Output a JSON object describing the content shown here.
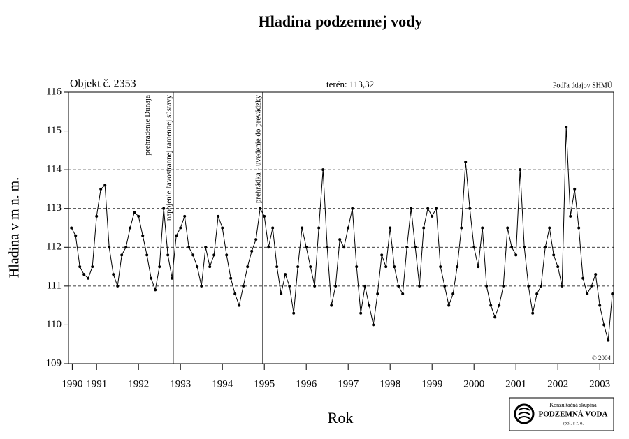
{
  "chart_data": {
    "type": "line",
    "title": "Hladina podzemnej vody",
    "x_label": "Rok",
    "y_label": "Hladina v m n. m.",
    "object": "Objekt č. 2353",
    "terrain": "terén: 113,32",
    "source": "Podľa údajov SHMÚ",
    "copyright": "© 2004",
    "logo": {
      "line1": "Konzultačná skupina",
      "line2": "PODZEMNÁ VODA",
      "line3": "spol. s r. o."
    },
    "events": [
      {
        "x": 1992.82,
        "label": "prehradenie Dunaja"
      },
      {
        "x": 1993.33,
        "label": "napojenie ľavostrannej ramennej sústavy"
      },
      {
        "x": 1995.46,
        "label": "prehrádka - uvedenie do prevádzky"
      }
    ],
    "xlim": [
      1990.83,
      2003.83
    ],
    "ylim": [
      109,
      116
    ],
    "yticks": [
      109,
      110,
      111,
      112,
      113,
      114,
      115,
      116
    ],
    "xticks": [
      {
        "value": 1990.92,
        "label": "1990"
      },
      {
        "value": 1991.5,
        "label": "1991"
      },
      {
        "value": 1992.5,
        "label": "1992"
      },
      {
        "value": 1993.5,
        "label": "1993"
      },
      {
        "value": 1994.5,
        "label": "1994"
      },
      {
        "value": 1995.5,
        "label": "1995"
      },
      {
        "value": 1996.5,
        "label": "1996"
      },
      {
        "value": 1997.5,
        "label": "1997"
      },
      {
        "value": 1998.5,
        "label": "1998"
      },
      {
        "value": 1999.5,
        "label": "1999"
      },
      {
        "value": 2000.5,
        "label": "2000"
      },
      {
        "value": 2001.5,
        "label": "2001"
      },
      {
        "value": 2002.5,
        "label": "2002"
      },
      {
        "value": 2003.5,
        "label": "2003"
      }
    ],
    "grid": true,
    "x": [
      1990.9,
      1991.0,
      1991.1,
      1991.2,
      1991.3,
      1991.4,
      1991.5,
      1991.6,
      1991.7,
      1991.8,
      1991.9,
      1992.0,
      1992.1,
      1992.2,
      1992.3,
      1992.4,
      1992.5,
      1992.6,
      1992.7,
      1992.8,
      1992.9,
      1993.0,
      1993.1,
      1993.2,
      1993.3,
      1993.4,
      1993.5,
      1993.6,
      1993.7,
      1993.8,
      1993.9,
      1994.0,
      1994.1,
      1994.2,
      1994.3,
      1994.4,
      1994.5,
      1994.6,
      1994.7,
      1994.8,
      1994.9,
      1995.0,
      1995.1,
      1995.2,
      1995.3,
      1995.4,
      1995.5,
      1995.6,
      1995.7,
      1995.8,
      1995.9,
      1996.0,
      1996.1,
      1996.2,
      1996.3,
      1996.4,
      1996.5,
      1996.6,
      1996.7,
      1996.8,
      1996.9,
      1997.0,
      1997.1,
      1997.2,
      1997.3,
      1997.4,
      1997.5,
      1997.6,
      1997.7,
      1997.8,
      1997.9,
      1998.0,
      1998.1,
      1998.2,
      1998.3,
      1998.4,
      1998.5,
      1998.6,
      1998.7,
      1998.8,
      1998.9,
      1999.0,
      1999.1,
      1999.2,
      1999.3,
      1999.4,
      1999.5,
      1999.6,
      1999.7,
      1999.8,
      1999.9,
      2000.0,
      2000.1,
      2000.2,
      2000.3,
      2000.4,
      2000.5,
      2000.6,
      2000.7,
      2000.8,
      2000.9,
      2001.0,
      2001.1,
      2001.2,
      2001.3,
      2001.4,
      2001.5,
      2001.6,
      2001.7,
      2001.8,
      2001.9,
      2002.0,
      2002.1,
      2002.2,
      2002.3,
      2002.4,
      2002.5,
      2002.6,
      2002.7,
      2002.8,
      2002.9,
      2003.0,
      2003.1,
      2003.2,
      2003.3,
      2003.4,
      2003.5,
      2003.6,
      2003.7,
      2003.8
    ],
    "series": [
      {
        "color": "#000000",
        "values": [
          112.5,
          112.3,
          111.5,
          111.3,
          111.2,
          111.5,
          112.8,
          113.5,
          113.6,
          112.0,
          111.3,
          111.0,
          111.8,
          112.0,
          112.5,
          112.9,
          112.8,
          112.3,
          111.8,
          111.2,
          110.9,
          111.5,
          113.0,
          111.8,
          111.2,
          112.3,
          112.5,
          112.8,
          112.0,
          111.8,
          111.5,
          111.0,
          112.0,
          111.5,
          111.8,
          112.8,
          112.5,
          111.8,
          111.2,
          110.8,
          110.5,
          111.0,
          111.5,
          111.9,
          112.2,
          113.0,
          112.8,
          112.0,
          112.5,
          111.5,
          110.8,
          111.3,
          111.0,
          110.3,
          111.5,
          112.5,
          112.0,
          111.5,
          111.0,
          112.5,
          114.0,
          112.0,
          110.5,
          111.0,
          112.2,
          112.0,
          112.5,
          113.0,
          111.5,
          110.3,
          111.0,
          110.5,
          110.0,
          110.8,
          111.8,
          111.5,
          112.5,
          111.5,
          111.0,
          110.8,
          112.0,
          113.0,
          112.0,
          111.0,
          112.5,
          113.0,
          112.8,
          113.0,
          111.5,
          111.0,
          110.5,
          110.8,
          111.5,
          112.5,
          114.2,
          113.0,
          112.0,
          111.5,
          112.5,
          111.0,
          110.5,
          110.2,
          110.5,
          111.0,
          112.5,
          112.0,
          111.8,
          114.0,
          112.0,
          111.0,
          110.3,
          110.8,
          111.0,
          112.0,
          112.5,
          111.8,
          111.5,
          111.0,
          115.1,
          112.8,
          113.5,
          112.5,
          111.2,
          110.8,
          111.0,
          111.3,
          110.5,
          110.0,
          109.6,
          110.8
        ]
      }
    ]
  }
}
